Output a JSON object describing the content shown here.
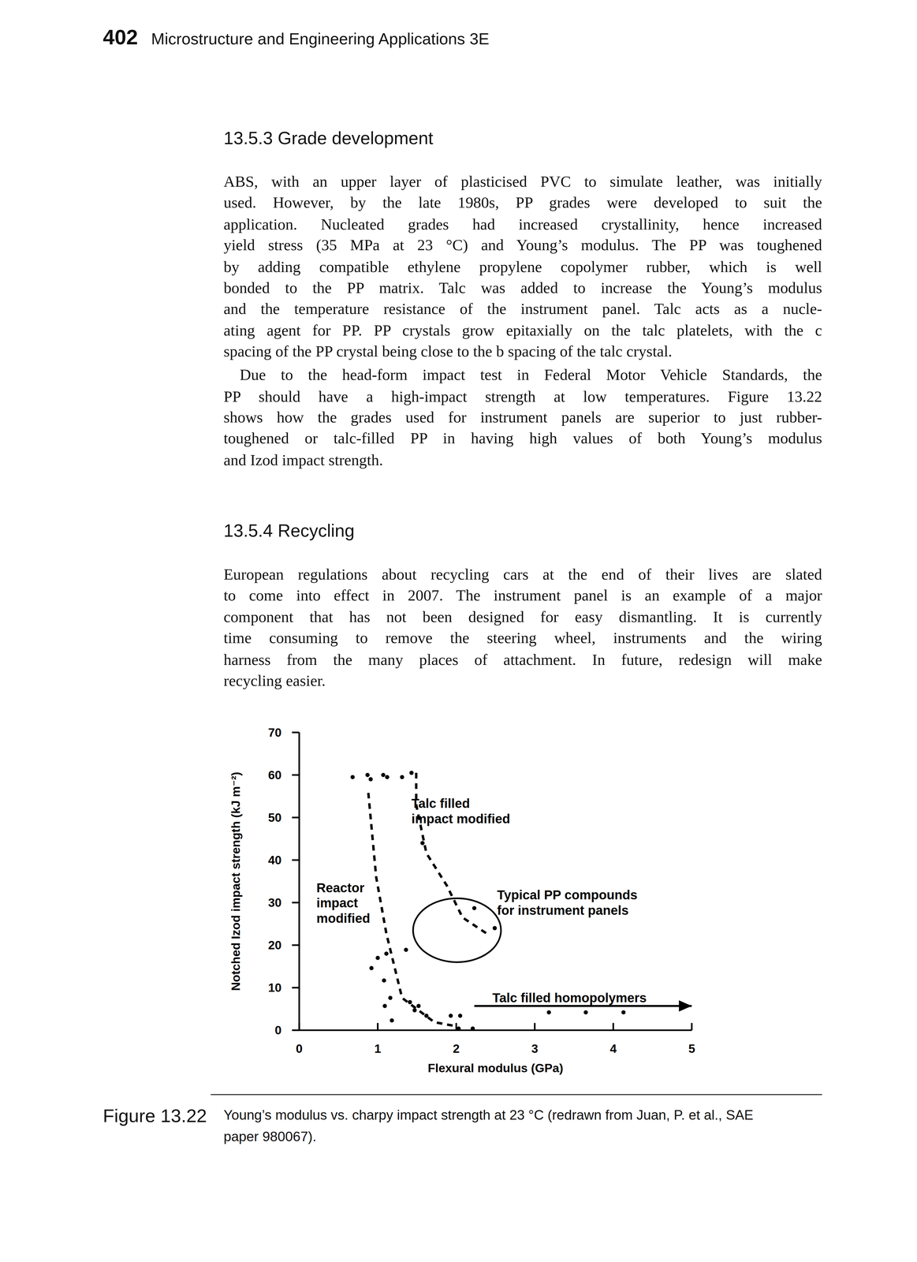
{
  "header": {
    "page_number": "402",
    "running_title": "Microstructure and Engineering Applications 3E"
  },
  "sections": [
    {
      "heading": "13.5.3 Grade development",
      "paragraphs": [
        [
          "ABS, with an upper layer of plasticised PVC to simulate leather, was initially",
          "used. However, by the late 1980s, PP grades were developed to suit the",
          "application. Nucleated grades had increased crystallinity, hence increased",
          "yield stress (35 MPa at 23 °C) and Young’s modulus. The PP was toughened",
          "by adding compatible ethylene propylene copolymer rubber, which is well",
          "bonded to the PP matrix. Talc was added to increase the Young’s modulus",
          "and the temperature resistance of the instrument panel. Talc acts as a nucle-",
          "ating agent for PP. PP crystals grow epitaxially on the talc platelets, with the c",
          "spacing of the PP crystal being close to the b spacing of the talc crystal."
        ],
        [
          "Due to the head-form impact test in Federal Motor Vehicle Standards, the",
          "PP should have a high-impact strength at low temperatures. Figure 13.22",
          "shows how the grades used for instrument panels are superior to just rubber-",
          "toughened or talc-filled PP in having high values of both Young’s modulus",
          "and Izod impact strength."
        ]
      ]
    },
    {
      "heading": "13.5.4 Recycling",
      "paragraphs": [
        [
          "European regulations about recycling cars at the end of their lives are slated",
          "to come into effect in 2007. The instrument panel is an example of a major",
          "component that has not been designed for easy dismantling. It is currently",
          "time consuming to remove the steering wheel, instruments and the wiring",
          "harness from the many places of attachment. In future, redesign will make",
          "recycling easier."
        ]
      ]
    }
  ],
  "chart_data": {
    "type": "scatter",
    "x_label": "Flexural modulus (GPa)",
    "y_label": "Notched Izod impact strength (kJ m⁻²)",
    "xlim": [
      0,
      5
    ],
    "ylim": [
      0,
      70
    ],
    "xticks": [
      0,
      1,
      2,
      3,
      4,
      5
    ],
    "yticks": [
      0,
      10,
      20,
      30,
      40,
      50,
      60,
      70
    ],
    "grid": false,
    "series": [
      {
        "type": "scatter",
        "marker": "circle",
        "color": "#000000",
        "x": [
          0.68,
          0.87,
          0.91,
          1.07,
          1.12,
          1.31,
          1.43,
          1.57,
          2.23,
          2.49,
          1.36,
          1.11,
          1.0,
          0.92,
          1.08,
          1.16,
          1.09,
          1.18,
          1.41,
          1.47,
          1.52,
          1.62,
          1.93,
          2.03,
          2.21,
          2.05,
          3.18,
          3.65,
          4.13
        ],
        "values": [
          59.5,
          60,
          59,
          60,
          59.5,
          59.5,
          60.5,
          44,
          28.7,
          24,
          18.9,
          18,
          17,
          14.6,
          11.7,
          7.6,
          5.7,
          2.3,
          6.6,
          4.7,
          5.7,
          3.4,
          3.4,
          0.4,
          0.4,
          3.4,
          4.2,
          4.2,
          4.2
        ]
      },
      {
        "type": "line",
        "line_style": "dashed",
        "marker": "none",
        "color": "#000000",
        "x": [
          0.88,
          0.98,
          1.11,
          1.31,
          1.72,
          1.98
        ],
        "values": [
          55.8,
          36,
          22.7,
          7.6,
          1.9,
          1
        ]
      },
      {
        "type": "line",
        "line_style": "dashed",
        "marker": "none",
        "color": "#000000",
        "x": [
          1.49,
          1.49,
          1.62,
          1.88,
          2.08,
          2.39
        ],
        "values": [
          60.5,
          53,
          41.6,
          34,
          26.5,
          22.7
        ]
      },
      {
        "type": "line",
        "line_style": "solid",
        "marker": "arrow",
        "color": "#000000",
        "x": [
          2.23,
          5
        ],
        "values": [
          5.7,
          5.7
        ]
      }
    ],
    "annotations": [
      {
        "text": [
          "Talc filled",
          "impact modified"
        ],
        "x": 1.43,
        "y": 53.3
      },
      {
        "text": [
          "Reactor",
          "impact",
          "modified"
        ],
        "x": 0.22,
        "y": 33.5
      },
      {
        "text": [
          "Typical PP compounds",
          "for instrument panels"
        ],
        "x": 2.52,
        "y": 31.8,
        "region": {
          "x": [
            1.45,
            2.57
          ],
          "y": [
            16,
            31
          ]
        }
      },
      {
        "text": [
          "Talc filled homopolymers"
        ],
        "x": 2.46,
        "y": 7.6
      }
    ]
  },
  "figure": {
    "label": "Figure 13.22",
    "caption": [
      "Young’s modulus vs. charpy impact strength at 23 °C (redrawn from Juan, P. et al., SAE",
      "paper 980067)."
    ]
  }
}
